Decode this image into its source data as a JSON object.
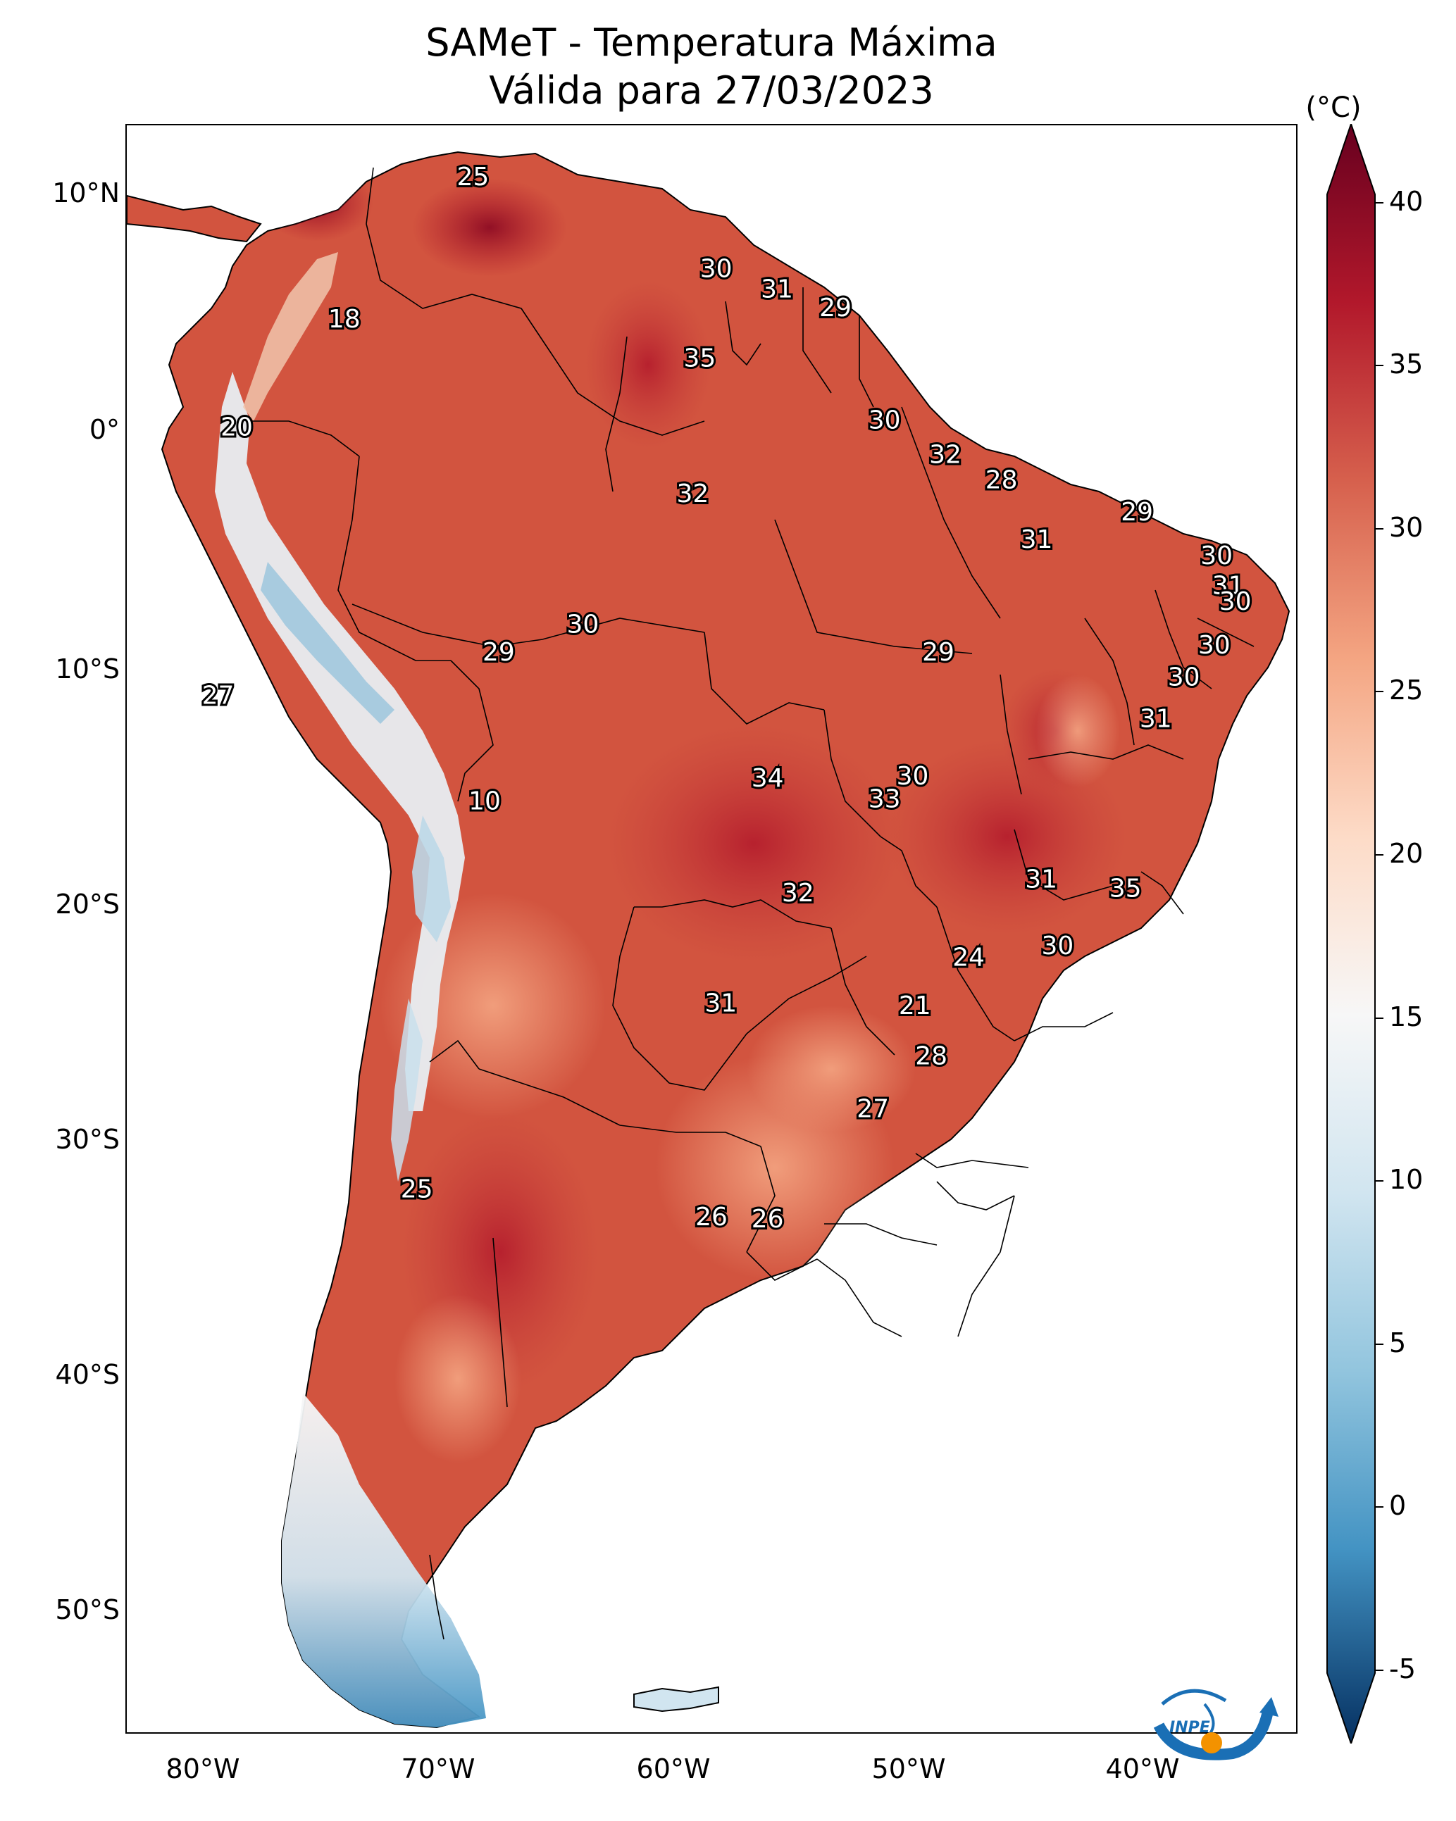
{
  "title": "SAMeT - Temperatura Máxima",
  "subtitle": "Válida para 27/03/2023",
  "colorbar": {
    "unit": "(°C)",
    "ticks": [
      "40",
      "35",
      "30",
      "25",
      "20",
      "15",
      "10",
      "5",
      "0",
      "-5"
    ],
    "colors": [
      "#67001f",
      "#b2182b",
      "#d6604d",
      "#f4a582",
      "#fddbc7",
      "#f7f7f7",
      "#d1e5f0",
      "#92c5de",
      "#4393c3",
      "#2166ac",
      "#053061"
    ]
  },
  "latitude_ticks": [
    "10°N",
    "0°",
    "10°S",
    "20°S",
    "30°S",
    "40°S",
    "50°S"
  ],
  "longitude_ticks": [
    "80°W",
    "70°W",
    "60°W",
    "50°W",
    "40°W"
  ],
  "logo_text": "INPE",
  "chart_data": {
    "type": "heatmap",
    "variable": "Temperatura Máxima",
    "units": "°C",
    "colorbar_range": [
      -5,
      40
    ],
    "colorbar_ticks": [
      -5,
      0,
      5,
      10,
      15,
      20,
      25,
      30,
      35,
      40
    ],
    "lon_range": [
      -83,
      -33
    ],
    "lat_range": [
      -57,
      13
    ],
    "station_values": [
      {
        "lon": -68.2,
        "lat": 10.7,
        "value": "25"
      },
      {
        "lon": -57.8,
        "lat": 6.7,
        "value": "30"
      },
      {
        "lon": -55.2,
        "lat": 5.8,
        "value": "31"
      },
      {
        "lon": -52.7,
        "lat": 5.0,
        "value": "29"
      },
      {
        "lon": -73.7,
        "lat": 4.5,
        "value": "18"
      },
      {
        "lon": -58.5,
        "lat": 2.8,
        "value": "35"
      },
      {
        "lon": -78.3,
        "lat": -0.2,
        "value": "20"
      },
      {
        "lon": -50.6,
        "lat": 0.1,
        "value": "30"
      },
      {
        "lon": -48.0,
        "lat": -1.4,
        "value": "32"
      },
      {
        "lon": -58.8,
        "lat": -3.1,
        "value": "32"
      },
      {
        "lon": -45.6,
        "lat": -2.5,
        "value": "28"
      },
      {
        "lon": -39.8,
        "lat": -3.9,
        "value": "29"
      },
      {
        "lon": -44.1,
        "lat": -5.1,
        "value": "31"
      },
      {
        "lon": -36.4,
        "lat": -5.8,
        "value": "30"
      },
      {
        "lon": -35.9,
        "lat": -7.1,
        "value": "31"
      },
      {
        "lon": -35.6,
        "lat": -7.8,
        "value": "30"
      },
      {
        "lon": -63.5,
        "lat": -8.8,
        "value": "30"
      },
      {
        "lon": -67.1,
        "lat": -10.0,
        "value": "29"
      },
      {
        "lon": -48.3,
        "lat": -10.0,
        "value": "29"
      },
      {
        "lon": -36.5,
        "lat": -9.7,
        "value": "30"
      },
      {
        "lon": -37.8,
        "lat": -11.1,
        "value": "30"
      },
      {
        "lon": -79.1,
        "lat": -11.9,
        "value": "27"
      },
      {
        "lon": -39.0,
        "lat": -12.9,
        "value": "31"
      },
      {
        "lon": -55.6,
        "lat": -15.5,
        "value": "34"
      },
      {
        "lon": -49.4,
        "lat": -15.4,
        "value": "30"
      },
      {
        "lon": -50.6,
        "lat": -16.4,
        "value": "33"
      },
      {
        "lon": -67.7,
        "lat": -16.5,
        "value": "10"
      },
      {
        "lon": -54.3,
        "lat": -20.5,
        "value": "32"
      },
      {
        "lon": -43.9,
        "lat": -19.9,
        "value": "31"
      },
      {
        "lon": -40.3,
        "lat": -20.3,
        "value": "35"
      },
      {
        "lon": -47.0,
        "lat": -23.3,
        "value": "24"
      },
      {
        "lon": -43.2,
        "lat": -22.8,
        "value": "30"
      },
      {
        "lon": -49.3,
        "lat": -25.4,
        "value": "21"
      },
      {
        "lon": -57.6,
        "lat": -25.3,
        "value": "31"
      },
      {
        "lon": -48.6,
        "lat": -27.6,
        "value": "28"
      },
      {
        "lon": -51.1,
        "lat": -29.9,
        "value": "27"
      },
      {
        "lon": -70.6,
        "lat": -33.4,
        "value": "25"
      },
      {
        "lon": -58.0,
        "lat": -34.6,
        "value": "26"
      },
      {
        "lon": -55.6,
        "lat": -34.7,
        "value": "26"
      }
    ]
  }
}
